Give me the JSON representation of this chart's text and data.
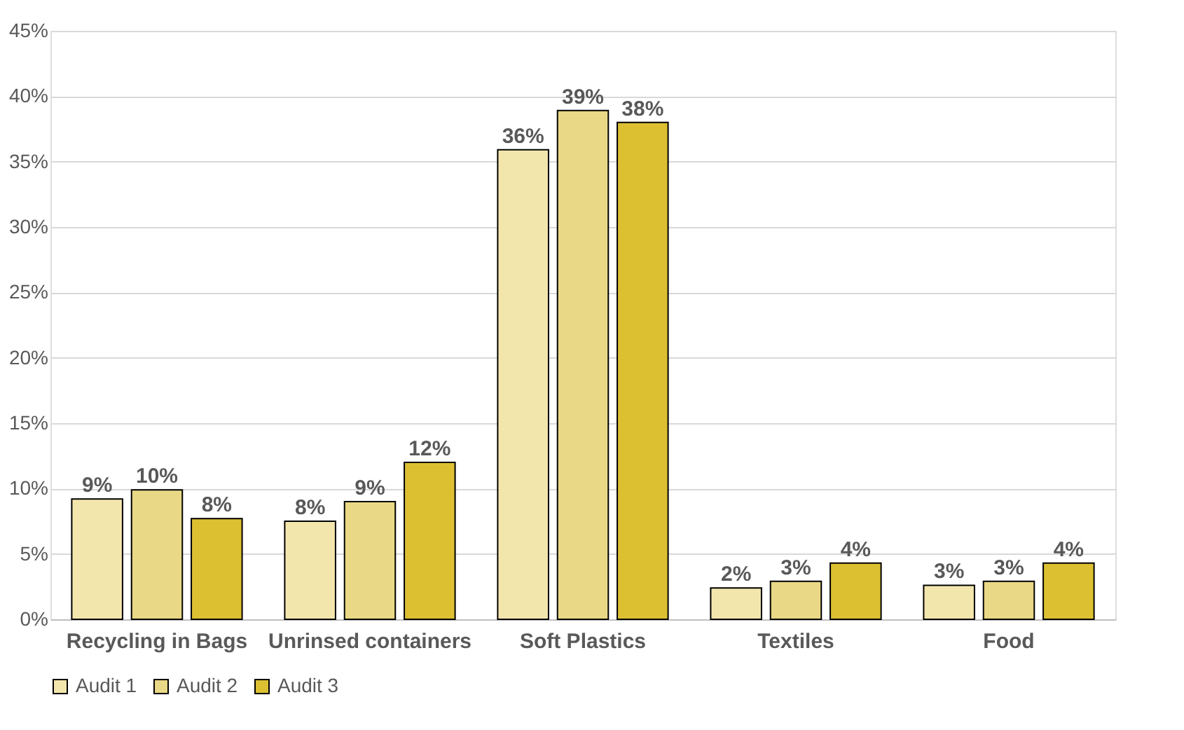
{
  "chart_data": {
    "type": "bar",
    "categories": [
      "Recycling in Bags",
      "Unrinsed containers",
      "Soft Plastics",
      "Textiles",
      "Food"
    ],
    "series": [
      {
        "name": "Audit 1",
        "color": "#f3e6ad",
        "values": [
          9.2,
          7.5,
          35.9,
          2.4,
          2.6
        ],
        "value_labels": [
          "9%",
          "8%",
          "36%",
          "2%",
          "3%"
        ]
      },
      {
        "name": "Audit 2",
        "color": "#e9d885",
        "values": [
          9.9,
          9.0,
          38.9,
          2.9,
          2.9
        ],
        "value_labels": [
          "10%",
          "9%",
          "39%",
          "3%",
          "3%"
        ]
      },
      {
        "name": "Audit 3",
        "color": "#dcc032",
        "values": [
          7.7,
          12.0,
          38.0,
          4.3,
          4.3
        ],
        "value_labels": [
          "8%",
          "12%",
          "38%",
          "4%",
          "4%"
        ]
      }
    ],
    "ylim": [
      0,
      45
    ],
    "yticks": [
      {
        "value": 0,
        "label": "0%"
      },
      {
        "value": 5,
        "label": "5%"
      },
      {
        "value": 10,
        "label": "10%"
      },
      {
        "value": 15,
        "label": "15%"
      },
      {
        "value": 20,
        "label": "20%"
      },
      {
        "value": 25,
        "label": "25%"
      },
      {
        "value": 30,
        "label": "30%"
      },
      {
        "value": 35,
        "label": "35%"
      },
      {
        "value": 40,
        "label": "40%"
      },
      {
        "value": 45,
        "label": "45%"
      }
    ],
    "grid": "y",
    "legend": "bottom"
  }
}
